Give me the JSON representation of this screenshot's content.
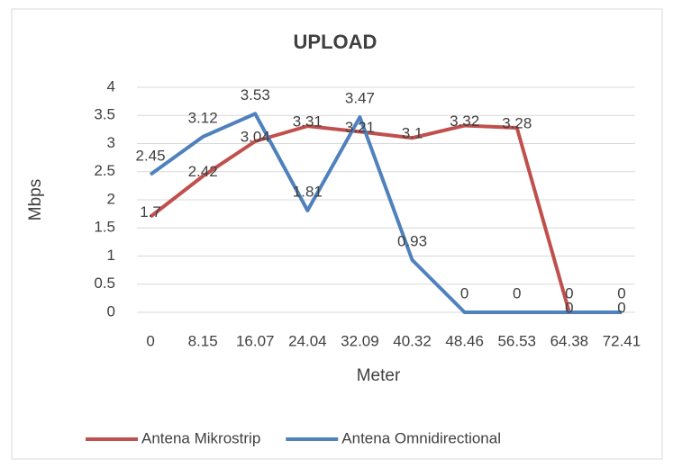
{
  "chart_data": {
    "type": "line",
    "title": "UPLOAD",
    "x_label": "Meter",
    "y_label": "Mbps",
    "categories": [
      "0",
      "8.15",
      "16.07",
      "24.04",
      "32.09",
      "40.32",
      "48.46",
      "56.53",
      "64.38",
      "72.41"
    ],
    "series": [
      {
        "name": "Antena Mikrostrip",
        "color": "#c0504d",
        "values": [
          1.7,
          2.42,
          3.04,
          3.31,
          3.21,
          3.1,
          3.32,
          3.28,
          0,
          0
        ]
      },
      {
        "name": "Antena Omnidirectional",
        "color": "#4f81bd",
        "values": [
          2.45,
          3.12,
          3.53,
          1.81,
          3.47,
          0.93,
          0,
          0,
          0,
          0
        ]
      }
    ],
    "ylim": [
      0,
      4
    ],
    "yticks": [
      0,
      0.5,
      1,
      1.5,
      2,
      2.5,
      3,
      3.5,
      4
    ],
    "grid": true,
    "legend": "bottom"
  }
}
